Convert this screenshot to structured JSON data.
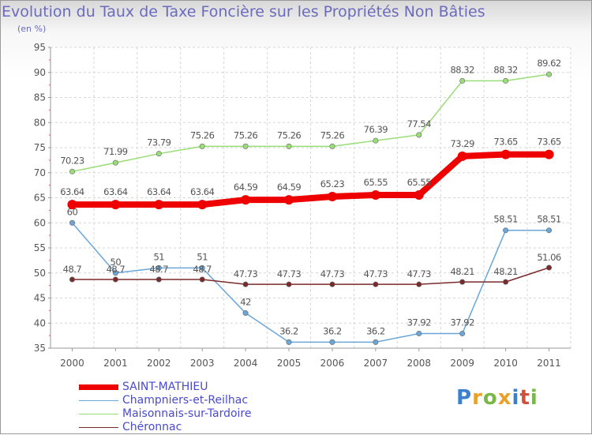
{
  "title": "Evolution du Taux de Taxe Foncière sur les Propriétés Non Bâties",
  "unit_label": "(en %)",
  "logo": {
    "letters": [
      "P",
      "r",
      "o",
      "x",
      "i",
      "t",
      "i"
    ],
    "colors": [
      "#3a7fd0",
      "#e8a22a",
      "#7ab648",
      "#e8a22a",
      "#3a7fd0",
      "#d24f3c",
      "#7ab648"
    ]
  },
  "chart_data": {
    "type": "line",
    "title": "Evolution du Taux de Taxe Foncière sur les Propriétés Non Bâties",
    "ylabel": "(en %)",
    "xlabel": "",
    "x": [
      "2000",
      "2001",
      "2002",
      "2003",
      "2004",
      "2005",
      "2006",
      "2007",
      "2008",
      "2009",
      "2010",
      "2011"
    ],
    "ylim": [
      35,
      95
    ],
    "yticks": [
      35,
      40,
      45,
      50,
      55,
      60,
      65,
      70,
      75,
      80,
      85,
      90,
      95
    ],
    "grid": true,
    "series": [
      {
        "name": "Maisonnais-sur-Tardoire",
        "color": "#99dd77",
        "values": [
          70.23,
          71.99,
          73.79,
          75.26,
          75.26,
          75.26,
          75.26,
          76.39,
          77.54,
          88.32,
          88.32,
          89.62
        ],
        "labels": [
          "70.23",
          "71.99",
          "73.79",
          "75.26",
          "75.26",
          "75.26",
          "75.26",
          "76.39",
          "77.54",
          "88.32",
          "88.32",
          "89.62"
        ]
      },
      {
        "name": "Champniers-et-Reilhac",
        "color": "#6aa6d8",
        "values": [
          60,
          50,
          51,
          51,
          42,
          36.2,
          36.2,
          36.2,
          37.92,
          37.92,
          58.51,
          58.51
        ],
        "labels": [
          "60",
          "50",
          "51",
          "51",
          "42",
          "36.2",
          "36.2",
          "36.2",
          "37.92",
          "37.92",
          "58.51",
          "58.51"
        ]
      },
      {
        "name": "Chéronnac",
        "color": "#7a2a2a",
        "values": [
          48.7,
          48.7,
          48.7,
          48.7,
          47.73,
          47.73,
          47.73,
          47.73,
          47.73,
          48.21,
          48.21,
          51.06
        ],
        "labels": [
          "48.7",
          "48.7",
          "48.7",
          "48.7",
          "47.73",
          "47.73",
          "47.73",
          "47.73",
          "47.73",
          "48.21",
          "48.21",
          "51.06"
        ]
      },
      {
        "name": "SAINT-MATHIEU",
        "color": "#ee0000",
        "values": [
          63.64,
          63.64,
          63.64,
          63.64,
          64.59,
          64.59,
          65.23,
          65.55,
          65.55,
          73.29,
          73.65,
          73.65
        ],
        "labels": [
          "63.64",
          "63.64",
          "63.64",
          "63.64",
          "64.59",
          "64.59",
          "65.23",
          "65.55",
          "65.55",
          "73.29",
          "73.65",
          "73.65"
        ]
      }
    ],
    "legend": [
      "SAINT-MATHIEU",
      "Champniers-et-Reilhac",
      "Maisonnais-sur-Tardoire",
      "Chéronnac"
    ],
    "legend_placement": "bottom-left"
  }
}
